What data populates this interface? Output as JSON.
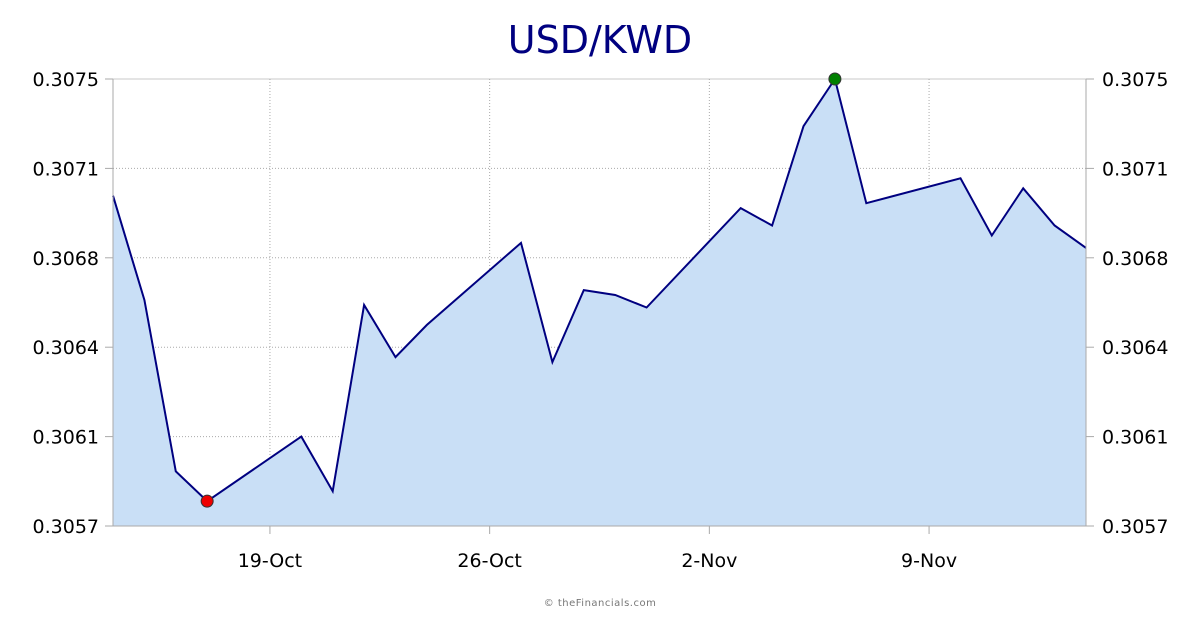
{
  "title": "USD/KWD",
  "footer": "© theFinancials.com",
  "colors": {
    "title": "#000080",
    "line": "#000080",
    "fill": "#c9dff6",
    "grid": "#aaaaaa",
    "axis": "#aaaaaa",
    "min_marker": "#ee0000",
    "max_marker": "#008000"
  },
  "chart_data": {
    "type": "area",
    "title": "USD/KWD",
    "xlabel": "",
    "ylabel": "",
    "ylim": [
      0.3057,
      0.3075
    ],
    "y_ticks": [
      "0.3057",
      "0.3061",
      "0.3064",
      "0.3068",
      "0.3071",
      "0.3075"
    ],
    "x_ticks": [
      "19-Oct",
      "26-Oct",
      "2-Nov",
      "9-Nov"
    ],
    "grid": true,
    "legend": "none",
    "dual_y_axis": true,
    "x": [
      "14-Oct",
      "15-Oct",
      "16-Oct",
      "17-Oct",
      "20-Oct",
      "21-Oct",
      "22-Oct",
      "23-Oct",
      "24-Oct",
      "27-Oct",
      "28-Oct",
      "29-Oct",
      "30-Oct",
      "31-Oct",
      "3-Nov",
      "4-Nov",
      "5-Nov",
      "6-Nov",
      "7-Nov",
      "10-Nov",
      "11-Nov",
      "12-Nov",
      "13-Nov",
      "14-Nov"
    ],
    "day_index": [
      0,
      1,
      2,
      3,
      6,
      7,
      8,
      9,
      10,
      13,
      14,
      15,
      16,
      17,
      20,
      21,
      22,
      23,
      24,
      27,
      28,
      29,
      30,
      31
    ],
    "values": [
      0.30703,
      0.30661,
      0.30592,
      0.3058,
      0.30606,
      0.30584,
      0.30659,
      0.30638,
      0.30651,
      0.30684,
      0.30636,
      0.30665,
      0.30663,
      0.30658,
      0.30698,
      0.30691,
      0.30731,
      0.3075,
      0.307,
      0.3071,
      0.30687,
      0.30706,
      0.30691,
      0.30682
    ],
    "annotations": [
      {
        "type": "min-marker",
        "x": "17-Oct",
        "value": 0.3058,
        "color": "#ee0000"
      },
      {
        "type": "max-marker",
        "x": "6-Nov",
        "value": 0.3075,
        "color": "#008000"
      }
    ]
  }
}
